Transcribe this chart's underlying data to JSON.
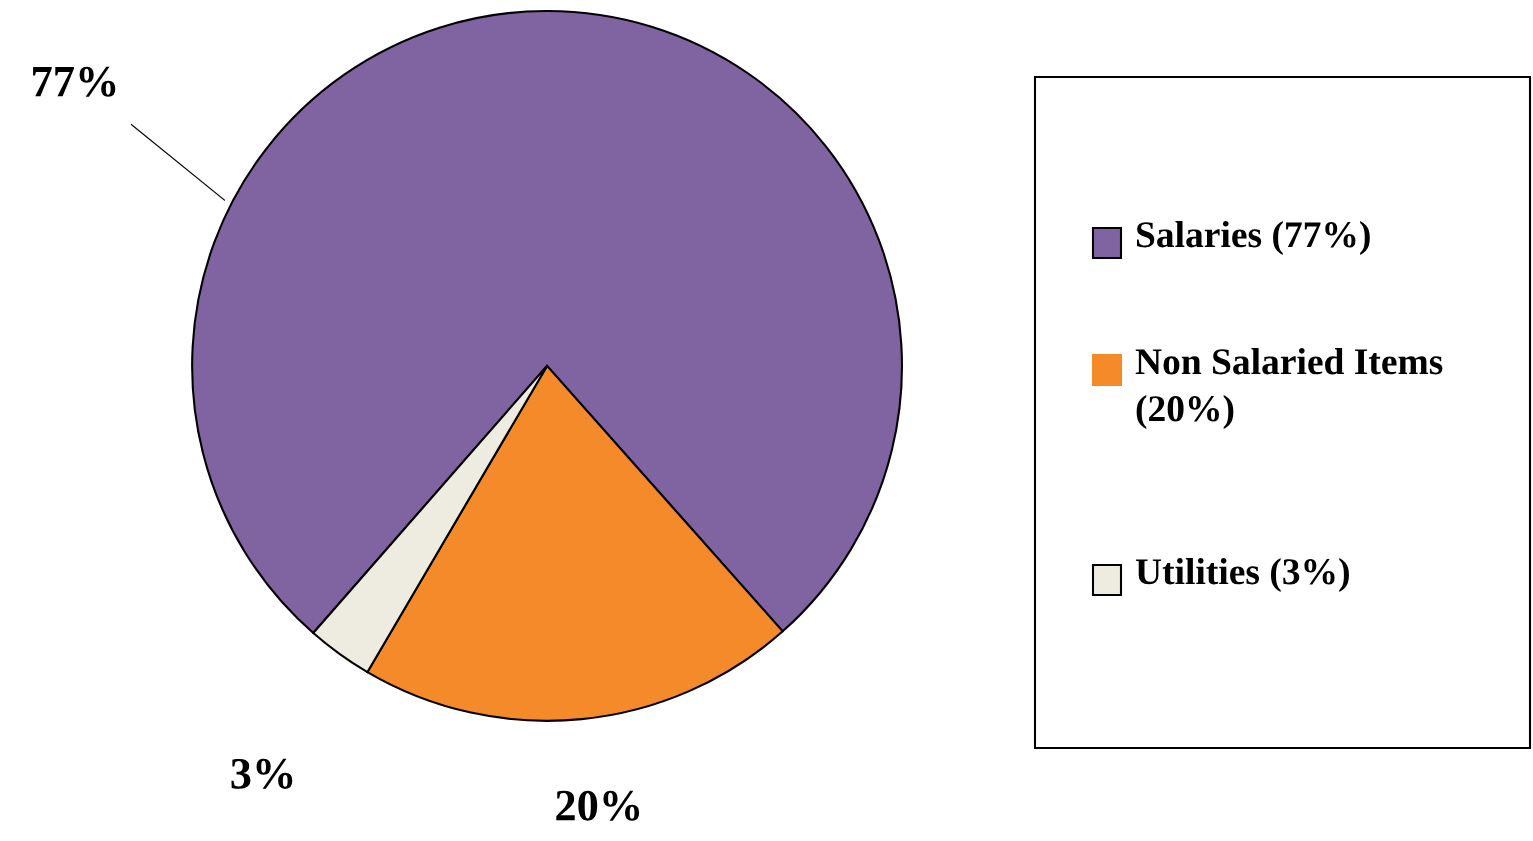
{
  "chart_data": {
    "type": "pie",
    "categories": [
      "Salaries (77%)",
      "Non Salaried Items (20%)",
      "Utilities (3%)"
    ],
    "values": [
      77,
      20,
      3
    ],
    "colors": [
      "#8064a2",
      "#f58a2b",
      "#eeece1"
    ],
    "value_labels": [
      "77%",
      "20%",
      "3%"
    ],
    "legend": "right"
  }
}
